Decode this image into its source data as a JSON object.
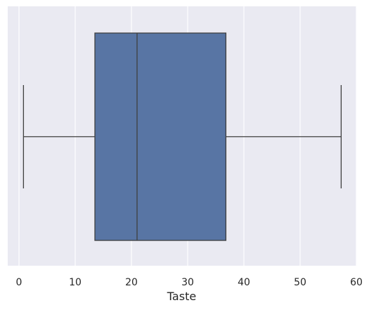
{
  "chart_data": {
    "type": "box",
    "orientation": "horizontal",
    "xlabel": "Taste",
    "ylabel": "",
    "xlim": [
      -2,
      60
    ],
    "xticks": [
      0,
      10,
      20,
      30,
      40,
      50,
      60
    ],
    "grid": true,
    "background_color": "#eaeaf2",
    "grid_color": "#ffffff",
    "box_color": "#5875a4",
    "line_color": "#3f3f3f",
    "series": [
      {
        "whisker_low": 0.8,
        "q1": 13.5,
        "median": 21.0,
        "q3": 36.8,
        "whisker_high": 57.3
      }
    ]
  }
}
